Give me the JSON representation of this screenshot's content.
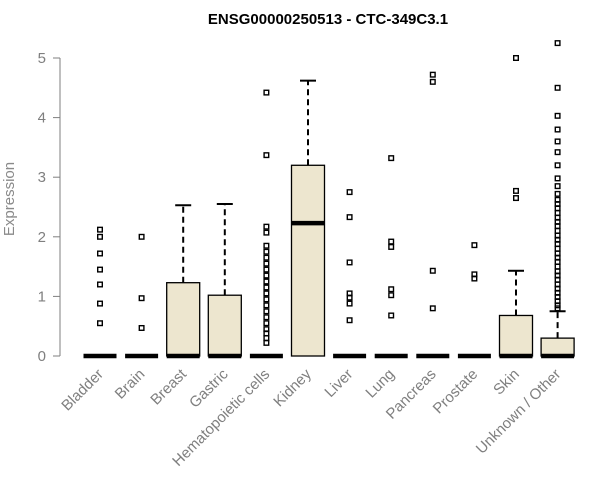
{
  "chart_data": {
    "type": "box",
    "title": "ENSG00000250513 - CTC-349C3.1",
    "xlabel": "",
    "ylabel": "Expression",
    "ylim": [
      0,
      5.25
    ],
    "yticks": [
      "0",
      "1",
      "2",
      "3",
      "4",
      "5"
    ],
    "grid": false,
    "box_fill": "#ede6cf",
    "categories": [
      "Bladder",
      "Brain",
      "Breast",
      "Gastric",
      "Hematopoietic cells",
      "Kidney",
      "Liver",
      "Lung",
      "Pancreas",
      "Prostate",
      "Skin",
      "Unknown / Other"
    ],
    "boxes": [
      {
        "category": "Bladder",
        "q1": 0,
        "median": 0,
        "q3": 0,
        "whisker_low": 0,
        "whisker_high": 0,
        "outliers": [
          2.12,
          2.0,
          1.72,
          1.45,
          1.2,
          0.88,
          0.55
        ]
      },
      {
        "category": "Brain",
        "q1": 0,
        "median": 0,
        "q3": 0,
        "whisker_low": 0,
        "whisker_high": 0,
        "outliers": [
          2.0,
          0.97,
          0.47
        ]
      },
      {
        "category": "Breast",
        "q1": 0,
        "median": 0,
        "q3": 1.23,
        "whisker_low": 0,
        "whisker_high": 2.53,
        "outliers": []
      },
      {
        "category": "Gastric",
        "q1": 0,
        "median": 0,
        "q3": 1.02,
        "whisker_low": 0,
        "whisker_high": 2.55,
        "outliers": []
      },
      {
        "category": "Hematopoietic cells",
        "q1": 0,
        "median": 0,
        "q3": 0,
        "whisker_low": 0,
        "whisker_high": 0,
        "outliers": [
          4.42,
          3.37,
          2.17,
          2.07,
          1.85,
          1.75,
          1.65,
          1.55,
          1.45,
          1.35,
          1.25,
          1.15,
          1.05,
          0.95,
          0.85,
          0.75,
          0.65,
          0.55,
          0.45,
          0.38,
          0.3,
          0.22
        ]
      },
      {
        "category": "Kidney",
        "q1": 0,
        "median": 2.23,
        "q3": 3.2,
        "whisker_low": 0,
        "whisker_high": 4.62,
        "outliers": []
      },
      {
        "category": "Liver",
        "q1": 0,
        "median": 0,
        "q3": 0,
        "whisker_low": 0,
        "whisker_high": 0,
        "outliers": [
          2.75,
          2.33,
          1.57,
          1.05,
          0.98,
          0.88,
          0.6
        ]
      },
      {
        "category": "Lung",
        "q1": 0,
        "median": 0,
        "q3": 0,
        "whisker_low": 0,
        "whisker_high": 0,
        "outliers": [
          3.32,
          1.92,
          1.83,
          1.12,
          1.02,
          0.68
        ]
      },
      {
        "category": "Pancreas",
        "q1": 0,
        "median": 0,
        "q3": 0,
        "whisker_low": 0,
        "whisker_high": 0,
        "outliers": [
          4.72,
          4.6,
          1.43,
          0.8
        ]
      },
      {
        "category": "Prostate",
        "q1": 0,
        "median": 0,
        "q3": 0,
        "whisker_low": 0,
        "whisker_high": 0,
        "outliers": [
          1.86,
          1.37,
          1.3
        ]
      },
      {
        "category": "Skin",
        "q1": 0,
        "median": 0,
        "q3": 0.68,
        "whisker_low": 0,
        "whisker_high": 1.43,
        "outliers": [
          5.0,
          2.77,
          2.65
        ]
      },
      {
        "category": "Unknown / Other",
        "q1": 0,
        "median": 0,
        "q3": 0.3,
        "whisker_low": 0,
        "whisker_high": 0.75,
        "outliers": [
          5.25,
          4.5,
          4.03,
          3.8,
          3.6,
          3.42,
          3.2,
          2.98,
          2.85,
          2.72,
          2.62,
          2.55,
          2.48,
          2.4,
          2.32,
          2.25,
          2.18,
          2.1,
          2.02,
          1.95,
          1.88,
          1.8,
          1.72,
          1.65,
          1.58,
          1.5,
          1.42,
          1.35,
          1.28,
          1.2,
          1.13,
          1.06,
          0.99,
          0.92,
          0.85,
          0.8
        ]
      }
    ]
  }
}
